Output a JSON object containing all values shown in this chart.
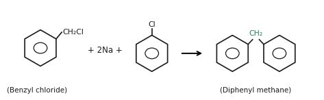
{
  "background_color": "#ffffff",
  "text_color": "#1a1a1a",
  "label_benzyl": "(Benzyl chloride)",
  "label_diphenyl": "(Diphenyl methane)",
  "reagent": "+ 2Na +",
  "ch2cl_label": "CH₂Cl",
  "cl_label": "Cl",
  "ch2_label": "CH₂",
  "ch2_color": "#2a7a6a",
  "ring_color": "#1a1a1a",
  "font_size_label": 7.5,
  "font_size_formula": 7.8,
  "font_size_reagent": 8.5
}
